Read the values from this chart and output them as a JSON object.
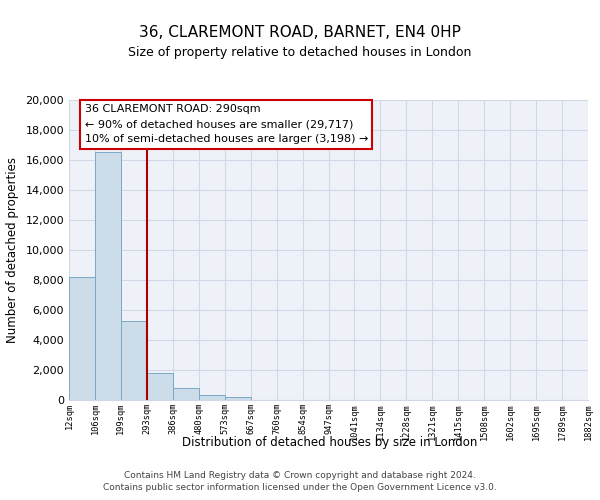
{
  "title": "36, CLAREMONT ROAD, BARNET, EN4 0HP",
  "subtitle": "Size of property relative to detached houses in London",
  "xlabel": "Distribution of detached houses by size in London",
  "ylabel": "Number of detached properties",
  "bar_values": [
    8200,
    16500,
    5300,
    1800,
    800,
    320,
    200,
    0,
    0,
    0,
    0,
    0,
    0,
    0,
    0,
    0,
    0,
    0,
    0,
    0
  ],
  "bar_labels": [
    "12sqm",
    "106sqm",
    "199sqm",
    "293sqm",
    "386sqm",
    "480sqm",
    "573sqm",
    "667sqm",
    "760sqm",
    "854sqm",
    "947sqm",
    "1041sqm",
    "1134sqm",
    "1228sqm",
    "1321sqm",
    "1415sqm",
    "1508sqm",
    "1602sqm",
    "1695sqm",
    "1789sqm",
    "1882sqm"
  ],
  "bar_color": "#ccdce8",
  "bar_edge_color": "#7aaac8",
  "marker_line_color": "#aa0000",
  "annotation_text1": "36 CLAREMONT ROAD: 290sqm",
  "annotation_text2": "← 90% of detached houses are smaller (29,717)",
  "annotation_text3": "10% of semi-detached houses are larger (3,198) →",
  "annotation_box_color": "white",
  "annotation_box_edge": "#cc0000",
  "ylim": [
    0,
    20000
  ],
  "yticks": [
    0,
    2000,
    4000,
    6000,
    8000,
    10000,
    12000,
    14000,
    16000,
    18000,
    20000
  ],
  "bg_color": "#eef2f8",
  "grid_color": "#d0d8e8",
  "footer1": "Contains HM Land Registry data © Crown copyright and database right 2024.",
  "footer2": "Contains public sector information licensed under the Open Government Licence v3.0."
}
